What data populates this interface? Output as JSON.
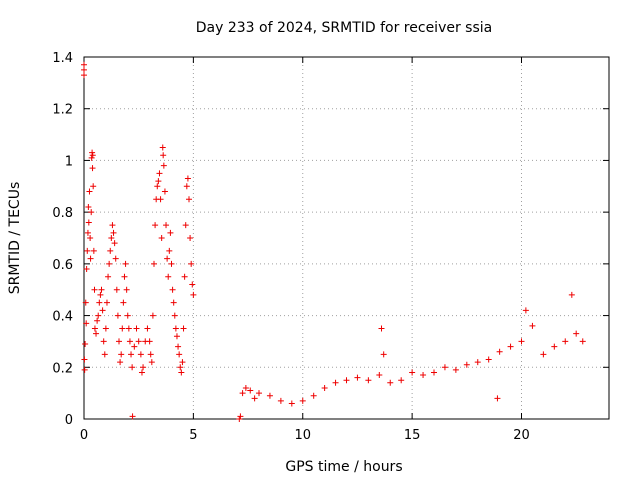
{
  "chart_data": {
    "type": "scatter",
    "title": "Day 233 of 2024, SRMTID for receiver ssia",
    "xlabel": "GPS time / hours",
    "ylabel": "SRMTID / TECUs",
    "xlim": [
      0,
      24
    ],
    "ylim": [
      0,
      1.4
    ],
    "xticks": [
      0,
      5,
      10,
      15,
      20
    ],
    "yticks": [
      0,
      0.2,
      0.4,
      0.6,
      0.8,
      1,
      1.2,
      1.4
    ],
    "xtick_labels": [
      "0",
      "5",
      "10",
      "15",
      "20"
    ],
    "ytick_labels": [
      "0",
      "0.2",
      "0.4",
      "0.6",
      "0.8",
      "1",
      "1.2",
      "1.4"
    ],
    "grid": true,
    "marker": "+",
    "color": "#ee0000",
    "series": [
      {
        "name": "SRMTID",
        "points": [
          [
            0.0,
            1.35
          ],
          [
            0.0,
            1.37
          ],
          [
            0.0,
            1.33
          ],
          [
            0.02,
            0.23
          ],
          [
            0.03,
            0.19
          ],
          [
            0.05,
            0.29
          ],
          [
            0.08,
            0.45
          ],
          [
            0.1,
            0.37
          ],
          [
            0.12,
            0.58
          ],
          [
            0.15,
            0.65
          ],
          [
            0.18,
            0.72
          ],
          [
            0.2,
            0.82
          ],
          [
            0.22,
            0.76
          ],
          [
            0.25,
            0.88
          ],
          [
            0.28,
            0.7
          ],
          [
            0.3,
            0.62
          ],
          [
            0.33,
            0.8
          ],
          [
            0.35,
            1.01
          ],
          [
            0.37,
            1.03
          ],
          [
            0.39,
            0.97
          ],
          [
            0.4,
            1.02
          ],
          [
            0.42,
            0.9
          ],
          [
            0.45,
            0.65
          ],
          [
            0.48,
            0.5
          ],
          [
            0.5,
            0.35
          ],
          [
            0.55,
            0.33
          ],
          [
            0.6,
            0.38
          ],
          [
            0.65,
            0.4
          ],
          [
            0.7,
            0.45
          ],
          [
            0.75,
            0.48
          ],
          [
            0.8,
            0.5
          ],
          [
            0.85,
            0.42
          ],
          [
            0.9,
            0.3
          ],
          [
            0.95,
            0.25
          ],
          [
            1.0,
            0.35
          ],
          [
            1.05,
            0.45
          ],
          [
            1.1,
            0.55
          ],
          [
            1.15,
            0.6
          ],
          [
            1.2,
            0.65
          ],
          [
            1.25,
            0.7
          ],
          [
            1.3,
            0.75
          ],
          [
            1.35,
            0.72
          ],
          [
            1.4,
            0.68
          ],
          [
            1.45,
            0.62
          ],
          [
            1.5,
            0.5
          ],
          [
            1.55,
            0.4
          ],
          [
            1.6,
            0.3
          ],
          [
            1.65,
            0.22
          ],
          [
            1.7,
            0.25
          ],
          [
            1.75,
            0.35
          ],
          [
            1.8,
            0.45
          ],
          [
            1.85,
            0.55
          ],
          [
            1.9,
            0.6
          ],
          [
            1.95,
            0.5
          ],
          [
            2.0,
            0.4
          ],
          [
            2.05,
            0.35
          ],
          [
            2.1,
            0.3
          ],
          [
            2.15,
            0.25
          ],
          [
            2.2,
            0.2
          ],
          [
            2.22,
            0.01
          ],
          [
            2.3,
            0.28
          ],
          [
            2.4,
            0.35
          ],
          [
            2.5,
            0.3
          ],
          [
            2.6,
            0.25
          ],
          [
            2.65,
            0.18
          ],
          [
            2.7,
            0.2
          ],
          [
            2.8,
            0.3
          ],
          [
            2.9,
            0.35
          ],
          [
            3.0,
            0.3
          ],
          [
            3.05,
            0.25
          ],
          [
            3.1,
            0.22
          ],
          [
            3.15,
            0.4
          ],
          [
            3.2,
            0.6
          ],
          [
            3.25,
            0.75
          ],
          [
            3.3,
            0.85
          ],
          [
            3.35,
            0.9
          ],
          [
            3.4,
            0.92
          ],
          [
            3.45,
            0.95
          ],
          [
            3.5,
            0.85
          ],
          [
            3.55,
            0.7
          ],
          [
            3.6,
            1.05
          ],
          [
            3.62,
            1.02
          ],
          [
            3.65,
            0.98
          ],
          [
            3.7,
            0.88
          ],
          [
            3.75,
            0.75
          ],
          [
            3.8,
            0.62
          ],
          [
            3.85,
            0.55
          ],
          [
            3.9,
            0.65
          ],
          [
            3.95,
            0.72
          ],
          [
            4.0,
            0.6
          ],
          [
            4.05,
            0.5
          ],
          [
            4.1,
            0.45
          ],
          [
            4.15,
            0.4
          ],
          [
            4.2,
            0.35
          ],
          [
            4.25,
            0.32
          ],
          [
            4.3,
            0.28
          ],
          [
            4.35,
            0.25
          ],
          [
            4.4,
            0.2
          ],
          [
            4.45,
            0.18
          ],
          [
            4.5,
            0.22
          ],
          [
            4.55,
            0.35
          ],
          [
            4.6,
            0.55
          ],
          [
            4.65,
            0.75
          ],
          [
            4.7,
            0.9
          ],
          [
            4.75,
            0.93
          ],
          [
            4.8,
            0.85
          ],
          [
            4.85,
            0.7
          ],
          [
            4.9,
            0.6
          ],
          [
            4.95,
            0.52
          ],
          [
            5.0,
            0.48
          ],
          [
            7.1,
            0.0
          ],
          [
            7.15,
            0.01
          ],
          [
            7.25,
            0.1
          ],
          [
            7.4,
            0.12
          ],
          [
            7.6,
            0.11
          ],
          [
            7.8,
            0.08
          ],
          [
            8.0,
            0.1
          ],
          [
            8.5,
            0.09
          ],
          [
            9.0,
            0.07
          ],
          [
            9.5,
            0.06
          ],
          [
            10.0,
            0.07
          ],
          [
            10.5,
            0.09
          ],
          [
            11.0,
            0.12
          ],
          [
            11.5,
            0.14
          ],
          [
            12.0,
            0.15
          ],
          [
            12.5,
            0.16
          ],
          [
            13.0,
            0.15
          ],
          [
            13.5,
            0.17
          ],
          [
            13.6,
            0.35
          ],
          [
            13.7,
            0.25
          ],
          [
            14.0,
            0.14
          ],
          [
            14.5,
            0.15
          ],
          [
            15.0,
            0.18
          ],
          [
            15.5,
            0.17
          ],
          [
            16.0,
            0.18
          ],
          [
            16.5,
            0.2
          ],
          [
            17.0,
            0.19
          ],
          [
            17.5,
            0.21
          ],
          [
            18.0,
            0.22
          ],
          [
            18.5,
            0.23
          ],
          [
            18.9,
            0.08
          ],
          [
            19.0,
            0.26
          ],
          [
            19.5,
            0.28
          ],
          [
            20.0,
            0.3
          ],
          [
            20.2,
            0.42
          ],
          [
            20.5,
            0.36
          ],
          [
            21.0,
            0.25
          ],
          [
            21.5,
            0.28
          ],
          [
            22.0,
            0.3
          ],
          [
            22.3,
            0.48
          ],
          [
            22.5,
            0.33
          ],
          [
            22.8,
            0.3
          ]
        ]
      }
    ]
  }
}
